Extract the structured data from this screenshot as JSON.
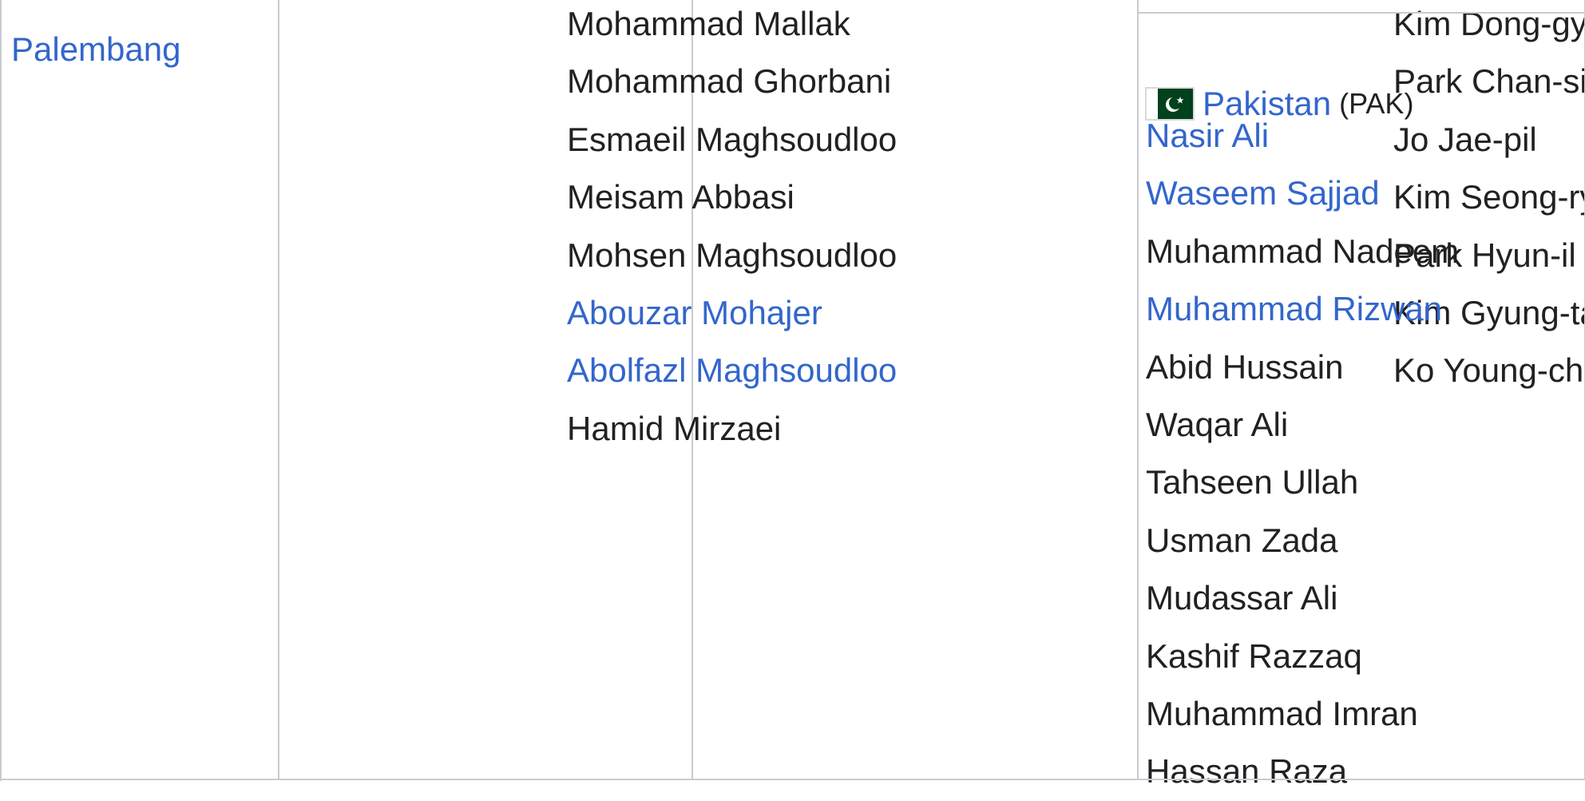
{
  "venue": "Palembang",
  "column2": [
    {
      "name": "Mohammad Mallak",
      "link": false
    },
    {
      "name": "Mohammad Ghorbani",
      "link": false
    },
    {
      "name": "Esmaeil Maghsoudloo",
      "link": false
    },
    {
      "name": "Meisam Abbasi",
      "link": false
    },
    {
      "name": "Mohsen Maghsoudloo",
      "link": false
    },
    {
      "name": "Abouzar Mohajer",
      "link": true
    },
    {
      "name": "Abolfazl Maghsoudloo",
      "link": true
    },
    {
      "name": "Hamid Mirzaei",
      "link": false
    }
  ],
  "column3": [
    {
      "name": "Kim Dong-gyu",
      "link": false
    },
    {
      "name": "Park Chan-sik",
      "link": false
    },
    {
      "name": "Jo Jae-pil",
      "link": false
    },
    {
      "name": "Kim Seong-ryeol",
      "link": false
    },
    {
      "name": "Park Hyun-il",
      "link": false
    },
    {
      "name": "Kim Gyung-tae",
      "link": false
    },
    {
      "name": "Ko Young-chang",
      "link": false
    }
  ],
  "column4": {
    "country": "Pakistan",
    "country_code": "(PAK)",
    "flag_icon": "pakistan-flag-icon",
    "players": [
      {
        "name": "Nasir Ali",
        "link": true
      },
      {
        "name": "Waseem Sajjad",
        "link": true
      },
      {
        "name": "Muhammad Nadeem",
        "link": false
      },
      {
        "name": "Muhammad Rizwan",
        "link": true
      },
      {
        "name": "Abid Hussain",
        "link": false
      },
      {
        "name": "Waqar Ali",
        "link": false
      },
      {
        "name": "Tahseen Ullah",
        "link": false
      },
      {
        "name": "Usman Zada",
        "link": false
      },
      {
        "name": "Mudassar Ali",
        "link": false
      },
      {
        "name": "Kashif Razzaq",
        "link": false
      },
      {
        "name": "Muhammad Imran",
        "link": false
      },
      {
        "name": "Hassan Raza",
        "link": false
      }
    ]
  },
  "colors": {
    "link": "#3366cc",
    "text": "#202122",
    "border": "#c8ccd1",
    "flag_green": "#01411c"
  }
}
